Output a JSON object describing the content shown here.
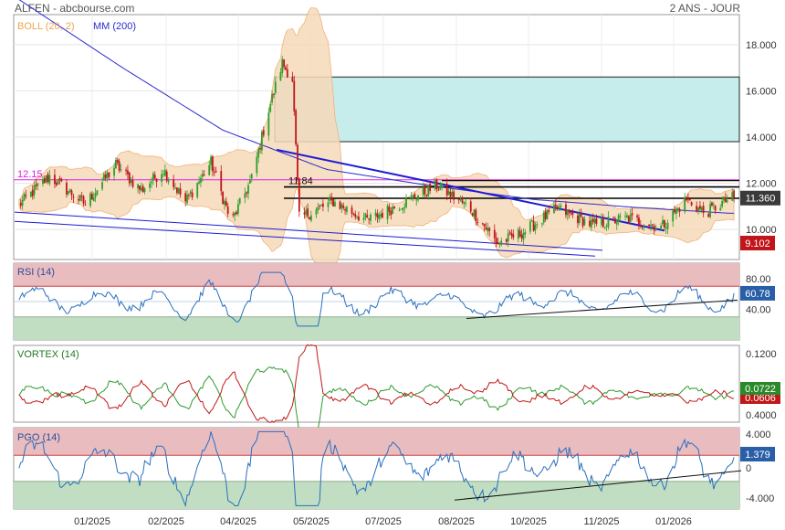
{
  "header": {
    "left": "ALFEN - abcbourse.com",
    "right": "2 ANS - JOUR"
  },
  "colors": {
    "up": "#2ca02c",
    "down": "#c0151b",
    "ma": "#2b2bd1",
    "boll": "#f1b27a",
    "boll_fill": "#f6d9b8",
    "rsi": "#2a6fbe",
    "vortex_plus": "#2e9a2e",
    "vortex_minus": "#c01818",
    "pgo": "#2a6fbe",
    "overbought": "#e9bcc0",
    "oversold": "#c2dec2",
    "target_box": "#c6ecec",
    "magenta": "#e020e0",
    "trend": "#1c1cd6"
  },
  "chart_data": [
    {
      "name": "price",
      "type": "candlestick",
      "legend": [
        {
          "label": "BOLL (20, 2)",
          "color": "#f0a44f"
        },
        {
          "label": "MM (200)",
          "color": "#2b2bd1"
        }
      ],
      "y_ticks": [
        "18.000",
        "16.000",
        "14.000",
        "12.000",
        "10.000"
      ],
      "ylim": [
        8.7,
        19.3
      ],
      "x_ticks": [
        "01/2025",
        "02/2025",
        "04/2025",
        "05/2025",
        "07/2025",
        "08/2025",
        "10/2025",
        "11/2025",
        "01/2026"
      ],
      "price_anchors": [
        {
          "date": "2024-12-01",
          "value": 11.0
        },
        {
          "date": "2024-12-20",
          "value": 12.3
        },
        {
          "date": "2025-01-10",
          "value": 11.1
        },
        {
          "date": "2025-01-28",
          "value": 12.8
        },
        {
          "date": "2025-02-12",
          "value": 11.7
        },
        {
          "date": "2025-02-25",
          "value": 12.6
        },
        {
          "date": "2025-03-10",
          "value": 11.2
        },
        {
          "date": "2025-03-25",
          "value": 12.9
        },
        {
          "date": "2025-04-06",
          "value": 10.3
        },
        {
          "date": "2025-04-18",
          "value": 12.2
        },
        {
          "date": "2025-04-28",
          "value": 15.2
        },
        {
          "date": "2025-05-06",
          "value": 17.2
        },
        {
          "date": "2025-05-12",
          "value": 16.5
        },
        {
          "date": "2025-05-16",
          "value": 10.5
        },
        {
          "date": "2025-06-05",
          "value": 11.2
        },
        {
          "date": "2025-06-25",
          "value": 10.4
        },
        {
          "date": "2025-07-15",
          "value": 11.1
        },
        {
          "date": "2025-08-05",
          "value": 11.9
        },
        {
          "date": "2025-08-25",
          "value": 10.9
        },
        {
          "date": "2025-09-10",
          "value": 9.4
        },
        {
          "date": "2025-09-25",
          "value": 9.9
        },
        {
          "date": "2025-10-15",
          "value": 10.9
        },
        {
          "date": "2025-11-05",
          "value": 10.2
        },
        {
          "date": "2025-11-25",
          "value": 10.5
        },
        {
          "date": "2025-12-15",
          "value": 10.1
        },
        {
          "date": "2025-12-30",
          "value": 11.3
        },
        {
          "date": "2026-01-10",
          "value": 10.7
        },
        {
          "date": "2026-01-25",
          "value": 11.36
        }
      ],
      "ma200_anchors": [
        {
          "date": "2024-12-01",
          "value": 20.0
        },
        {
          "date": "2025-02-01",
          "value": 17.0
        },
        {
          "date": "2025-04-01",
          "value": 14.3
        },
        {
          "date": "2025-06-01",
          "value": 12.6
        },
        {
          "date": "2025-08-01",
          "value": 11.9
        },
        {
          "date": "2025-10-01",
          "value": 11.3
        },
        {
          "date": "2025-12-01",
          "value": 10.95
        },
        {
          "date": "2026-01-25",
          "value": 10.7
        }
      ],
      "levels": [
        {
          "label": "12.15",
          "value": 12.15,
          "color": "#e020e0"
        },
        {
          "label": "11.84",
          "value": 11.84,
          "color": "#000000"
        },
        {
          "label": "",
          "value": 11.35,
          "color": "#000000"
        }
      ],
      "target_zone": {
        "from": 13.8,
        "to": 16.6
      },
      "last_price": "11.360",
      "low_label": "9.102"
    },
    {
      "name": "rsi",
      "type": "line",
      "label": "RSI (14)",
      "y_ticks": [
        "80.00",
        "40.00"
      ],
      "ylim": [
        0,
        100
      ],
      "overbought": 70,
      "oversold": 30,
      "last_value": "60.78"
    },
    {
      "name": "vortex",
      "type": "line",
      "label": "VORTEX (14)",
      "y_ticks": [
        "0.1200",
        "0.4000"
      ],
      "last_plus": "0.0722",
      "last_minus": "0.0606"
    },
    {
      "name": "pgo",
      "type": "line",
      "label": "PGO (14)",
      "y_ticks": [
        "4.000",
        "0",
        "-4.000"
      ],
      "ylim": [
        -5,
        5
      ],
      "last_value": "1.379"
    }
  ]
}
